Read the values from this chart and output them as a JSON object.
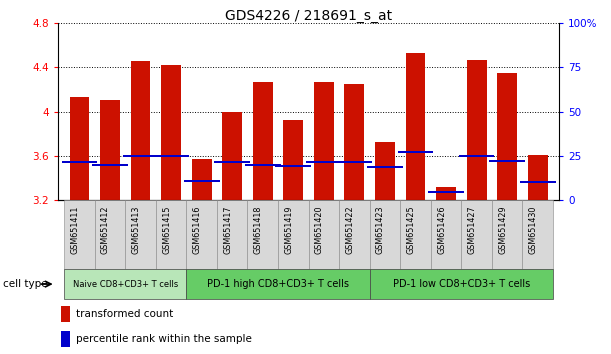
{
  "title": "GDS4226 / 218691_s_at",
  "samples": [
    "GSM651411",
    "GSM651412",
    "GSM651413",
    "GSM651415",
    "GSM651416",
    "GSM651417",
    "GSM651418",
    "GSM651419",
    "GSM651420",
    "GSM651422",
    "GSM651423",
    "GSM651425",
    "GSM651426",
    "GSM651427",
    "GSM651429",
    "GSM651430"
  ],
  "transformed_count": [
    4.13,
    4.1,
    4.46,
    4.42,
    3.57,
    4.0,
    4.27,
    3.92,
    4.27,
    4.25,
    3.72,
    4.53,
    3.32,
    4.47,
    4.35,
    3.61
  ],
  "percentile_rank": [
    3.54,
    3.52,
    3.6,
    3.6,
    3.37,
    3.54,
    3.52,
    3.51,
    3.54,
    3.54,
    3.5,
    3.63,
    3.27,
    3.6,
    3.55,
    3.36
  ],
  "ylim_left": [
    3.2,
    4.8
  ],
  "ylim_right": [
    0,
    100
  ],
  "yticks_left": [
    3.2,
    3.6,
    4.0,
    4.4,
    4.8
  ],
  "yticks_right": [
    0,
    25,
    50,
    75,
    100
  ],
  "ytick_labels_left": [
    "3.2",
    "3.6",
    "4",
    "4.4",
    "4.8"
  ],
  "ytick_labels_right": [
    "0",
    "25",
    "50",
    "75",
    "100%"
  ],
  "bar_color": "#cc1100",
  "marker_color": "#0000cc",
  "cell_groups": [
    {
      "label": "Naive CD8+CD3+ T cells",
      "start": 0,
      "end": 4,
      "color": "#b8e6b8"
    },
    {
      "label": "PD-1 high CD8+CD3+ T cells",
      "start": 4,
      "end": 10,
      "color": "#66cc66"
    },
    {
      "label": "PD-1 low CD8+CD3+ T cells",
      "start": 10,
      "end": 16,
      "color": "#66cc66"
    }
  ],
  "legend_items": [
    {
      "label": "transformed count",
      "color": "#cc1100"
    },
    {
      "label": "percentile rank within the sample",
      "color": "#0000cc"
    }
  ],
  "cell_type_label": "cell type",
  "background_color": "#ffffff",
  "bar_width": 0.65
}
